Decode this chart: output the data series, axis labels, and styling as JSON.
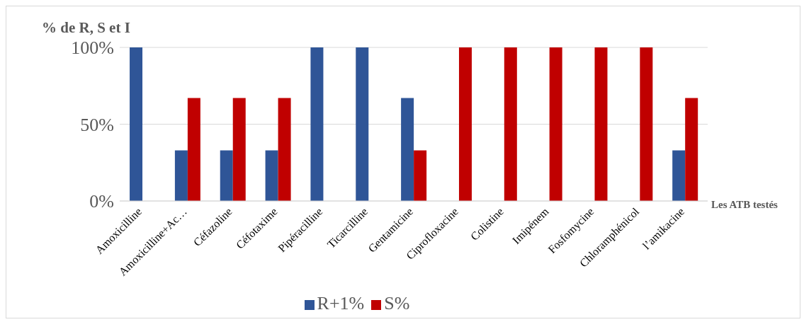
{
  "chart_data": {
    "type": "bar",
    "ylabel": "% de R, S et I",
    "xlabel": "Les ATB testés",
    "categories": [
      "Amoxicilline",
      "Amoxicilline+Ac…",
      "Céfazoline",
      "Céfotaxime",
      "Pipéracilline",
      "Ticarcilline",
      "Gentamicine",
      "Ciprofloxacine",
      "Colistine",
      "Imipénem",
      "Fosfomycine",
      "Chloramphénicol",
      "l’amikacine"
    ],
    "series": [
      {
        "name": "R+1%",
        "color": "#2f5597",
        "values": [
          100,
          33,
          33,
          33,
          100,
          100,
          67,
          0,
          0,
          0,
          0,
          0,
          33
        ]
      },
      {
        "name": "S%",
        "color": "#c00000",
        "values": [
          0,
          67,
          67,
          67,
          0,
          0,
          33,
          100,
          100,
          100,
          100,
          100,
          67
        ]
      }
    ],
    "ylim": [
      0,
      100
    ],
    "yticks": [
      {
        "value": 0,
        "label": "0%"
      },
      {
        "value": 50,
        "label": "50%"
      },
      {
        "value": 100,
        "label": "100%"
      }
    ],
    "grid": "y",
    "legend": "bottom"
  }
}
